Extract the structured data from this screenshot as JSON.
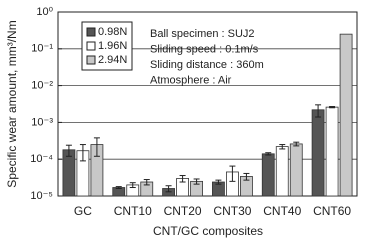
{
  "chart_data": {
    "type": "bar",
    "log_scale": true,
    "y_label": "Specific wear amount, mm³/Nm",
    "x_label": "CNT/GC composites",
    "categories": [
      "GC",
      "CNT10",
      "CNT20",
      "CNT30",
      "CNT40",
      "CNT60"
    ],
    "series": [
      {
        "name": "0.98N",
        "color": "#555555",
        "values": [
          0.00018,
          1.7e-05,
          1.6e-05,
          2.4e-05,
          0.00014,
          0.0022
        ],
        "errors": [
          6e-05,
          1e-06,
          3e-06,
          3e-06,
          1e-05,
          0.0008
        ]
      },
      {
        "name": "1.96N",
        "color": "#ffffff",
        "values": [
          0.00017,
          2e-05,
          3e-05,
          4.5e-05,
          0.00022,
          0.0026
        ],
        "errors": [
          8e-05,
          3e-06,
          6e-06,
          2e-05,
          3e-05,
          0.0001
        ]
      },
      {
        "name": "2.94N",
        "color": "#c8c8c8",
        "values": [
          0.00025,
          2.4e-05,
          2.5e-05,
          3.4e-05,
          0.00026,
          0.25
        ],
        "errors": [
          0.00013,
          4e-06,
          4e-06,
          7e-06,
          3e-05,
          null
        ]
      }
    ],
    "annotations": [
      "Ball specimen : SUJ2",
      "Sliding speed : 0.1m/s",
      "Sliding distance : 360m",
      "Atmosphere : Air"
    ],
    "ylim": [
      1e-05,
      1
    ],
    "yticks": [
      {
        "value": 1e-05,
        "label": "10⁻⁵"
      },
      {
        "value": 0.0001,
        "label": "10⁻⁴"
      },
      {
        "value": 0.001,
        "label": "10⁻³"
      },
      {
        "value": 0.01,
        "label": "10⁻²"
      },
      {
        "value": 0.1,
        "label": "10⁻¹"
      },
      {
        "value": 1,
        "label": "10⁰"
      }
    ],
    "grid": true,
    "legend": "upper left"
  }
}
